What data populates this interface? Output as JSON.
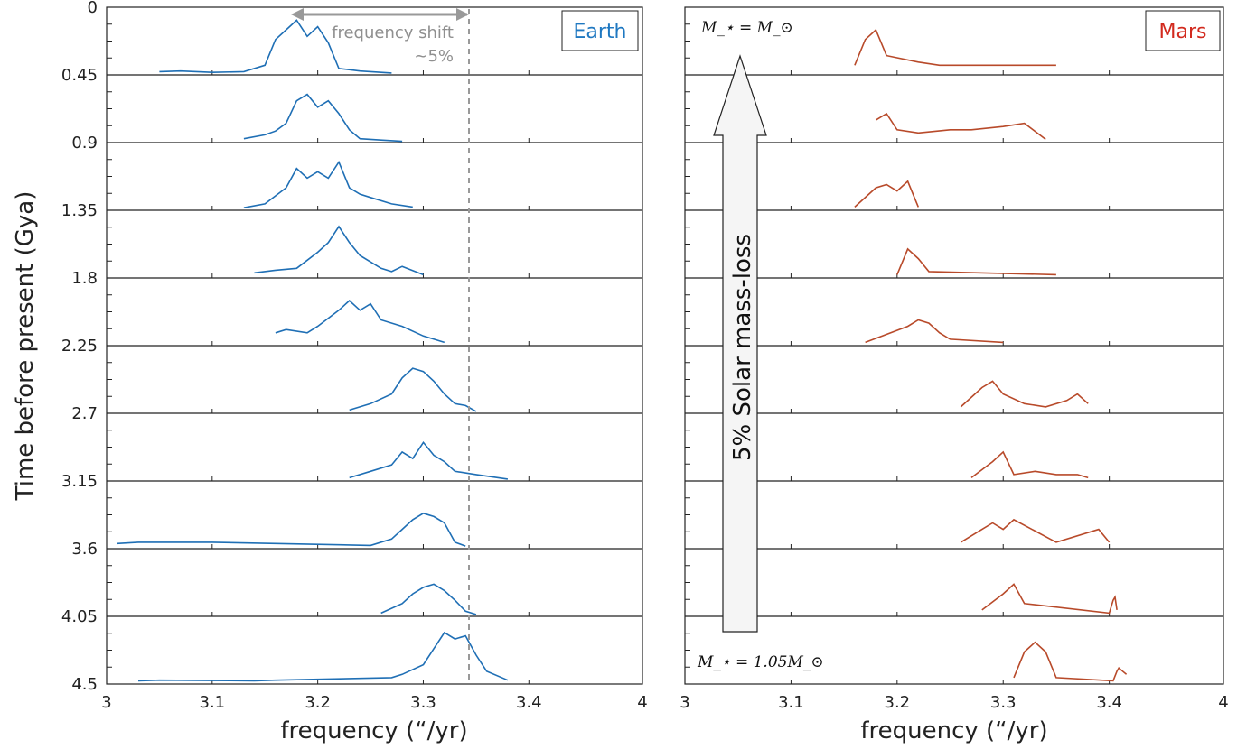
{
  "chart_data": [
    {
      "type": "line",
      "panel": "left",
      "legend": "Earth",
      "xlabel": "frequency (“/yr)",
      "ylabel": "Time before present (Gya)",
      "xlim": [
        3,
        4
      ],
      "xticks": [
        "3",
        "3.1",
        "3.2",
        "3.3",
        "3.4",
        "4"
      ],
      "yticks": [
        "0",
        "0.45",
        "0.9",
        "1.35",
        "1.8",
        "2.25",
        "2.7",
        "3.15",
        "3.6",
        "4.05",
        "4.5"
      ],
      "line_color": "#1f6fb5",
      "annotation": {
        "line1": "frequency shift",
        "line2": "~5%",
        "from_x": 3.175,
        "to_x": 3.34,
        "dashed_x": 3.34
      },
      "rows": [
        {
          "time": "0",
          "x": [
            3.05,
            3.07,
            3.1,
            3.13,
            3.15,
            3.16,
            3.17,
            3.18,
            3.19,
            3.2,
            3.21,
            3.22,
            3.24,
            3.26,
            3.27
          ],
          "y": [
            0.05,
            0.06,
            0.04,
            0.05,
            0.15,
            0.55,
            0.7,
            0.85,
            0.6,
            0.75,
            0.5,
            0.1,
            0.06,
            0.04,
            0.03
          ]
        },
        {
          "time": "0.45",
          "x": [
            3.13,
            3.15,
            3.16,
            3.17,
            3.18,
            3.19,
            3.2,
            3.21,
            3.22,
            3.23,
            3.24,
            3.26,
            3.28
          ],
          "y": [
            0.06,
            0.12,
            0.18,
            0.3,
            0.65,
            0.75,
            0.55,
            0.65,
            0.45,
            0.2,
            0.06,
            0.04,
            0.02
          ]
        },
        {
          "time": "0.9",
          "x": [
            3.13,
            3.15,
            3.17,
            3.18,
            3.19,
            3.2,
            3.21,
            3.22,
            3.23,
            3.24,
            3.25,
            3.27,
            3.29
          ],
          "y": [
            0.04,
            0.1,
            0.35,
            0.65,
            0.5,
            0.6,
            0.5,
            0.75,
            0.35,
            0.25,
            0.2,
            0.1,
            0.05
          ]
        },
        {
          "time": "1.35",
          "x": [
            3.14,
            3.16,
            3.18,
            3.2,
            3.21,
            3.22,
            3.23,
            3.24,
            3.26,
            3.27,
            3.28,
            3.3
          ],
          "y": [
            0.08,
            0.12,
            0.15,
            0.4,
            0.55,
            0.8,
            0.55,
            0.35,
            0.15,
            0.1,
            0.18,
            0.05
          ]
        },
        {
          "time": "1.8",
          "x": [
            3.16,
            3.17,
            3.19,
            3.2,
            3.22,
            3.23,
            3.24,
            3.25,
            3.26,
            3.28,
            3.3,
            3.32
          ],
          "y": [
            0.2,
            0.25,
            0.2,
            0.3,
            0.55,
            0.7,
            0.55,
            0.65,
            0.4,
            0.3,
            0.15,
            0.05
          ]
        },
        {
          "time": "2.25",
          "x": [
            3.23,
            3.25,
            3.27,
            3.28,
            3.29,
            3.3,
            3.31,
            3.32,
            3.33,
            3.34,
            3.35
          ],
          "y": [
            0.05,
            0.15,
            0.3,
            0.55,
            0.7,
            0.65,
            0.5,
            0.3,
            0.15,
            0.12,
            0.03
          ]
        },
        {
          "time": "2.7",
          "x": [
            3.23,
            3.25,
            3.27,
            3.28,
            3.29,
            3.3,
            3.31,
            3.32,
            3.33,
            3.35,
            3.38
          ],
          "y": [
            0.05,
            0.15,
            0.25,
            0.45,
            0.35,
            0.6,
            0.4,
            0.3,
            0.15,
            0.1,
            0.03
          ]
        },
        {
          "time": "3.15",
          "x": [
            3.01,
            3.03,
            3.1,
            3.25,
            3.27,
            3.28,
            3.29,
            3.3,
            3.31,
            3.32,
            3.33,
            3.34
          ],
          "y": [
            0.08,
            0.1,
            0.1,
            0.05,
            0.15,
            0.3,
            0.45,
            0.55,
            0.5,
            0.4,
            0.1,
            0.04
          ]
        },
        {
          "time": "3.6",
          "x": [
            3.26,
            3.28,
            3.29,
            3.3,
            3.31,
            3.32,
            3.33,
            3.34,
            3.35
          ],
          "y": [
            0.05,
            0.2,
            0.35,
            0.45,
            0.5,
            0.4,
            0.25,
            0.08,
            0.03
          ]
        },
        {
          "time": "4.05",
          "x": [
            3.03,
            3.05,
            3.14,
            3.16,
            3.27,
            3.28,
            3.3,
            3.31,
            3.32,
            3.33,
            3.34,
            3.35,
            3.36,
            3.38
          ],
          "y": [
            0.05,
            0.06,
            0.05,
            0.06,
            0.1,
            0.15,
            0.3,
            0.55,
            0.8,
            0.7,
            0.75,
            0.45,
            0.2,
            0.06
          ]
        }
      ]
    },
    {
      "type": "line",
      "panel": "right",
      "legend": "Mars",
      "xlabel": "frequency (“/yr)",
      "xlim": [
        3,
        4
      ],
      "xticks": [
        "3",
        "3.1",
        "3.2",
        "3.3",
        "3.4",
        "4"
      ],
      "line_color": "#b84a2a",
      "top_label": "M_⋆ = M_⊙",
      "bottom_label": "M_⋆ = 1.05M_⊙",
      "arrow_label": "5% Solar mass-loss",
      "rows": [
        {
          "time": "0",
          "x": [
            3.16,
            3.17,
            3.18,
            3.19,
            3.22,
            3.24,
            3.27,
            3.3,
            3.35
          ],
          "y": [
            0.15,
            0.55,
            0.7,
            0.3,
            0.2,
            0.15,
            0.15,
            0.15,
            0.15
          ]
        },
        {
          "time": "0.45",
          "x": [
            3.18,
            3.19,
            3.2,
            3.22,
            3.25,
            3.27,
            3.3,
            3.32,
            3.34
          ],
          "y": [
            0.35,
            0.45,
            0.2,
            0.15,
            0.2,
            0.2,
            0.25,
            0.3,
            0.05
          ]
        },
        {
          "time": "0.9",
          "x": [
            3.16,
            3.18,
            3.19,
            3.2,
            3.21,
            3.22
          ],
          "y": [
            0.05,
            0.35,
            0.4,
            0.3,
            0.45,
            0.05
          ]
        },
        {
          "time": "1.35",
          "x": [
            3.2,
            3.21,
            3.22,
            3.23,
            3.35
          ],
          "y": [
            0.05,
            0.45,
            0.3,
            0.1,
            0.05
          ]
        },
        {
          "time": "1.8",
          "x": [
            3.17,
            3.21,
            3.22,
            3.23,
            3.24,
            3.25,
            3.3
          ],
          "y": [
            0.05,
            0.3,
            0.4,
            0.35,
            0.2,
            0.1,
            0.05
          ]
        },
        {
          "time": "2.25",
          "x": [
            3.26,
            3.28,
            3.29,
            3.3,
            3.32,
            3.34,
            3.36,
            3.37,
            3.38
          ],
          "y": [
            0.1,
            0.4,
            0.5,
            0.3,
            0.15,
            0.1,
            0.2,
            0.3,
            0.15
          ]
        },
        {
          "time": "2.7",
          "x": [
            3.27,
            3.29,
            3.3,
            3.31,
            3.33,
            3.35,
            3.37,
            3.38
          ],
          "y": [
            0.05,
            0.3,
            0.45,
            0.1,
            0.15,
            0.1,
            0.1,
            0.05
          ]
        },
        {
          "time": "3.15",
          "x": [
            3.26,
            3.28,
            3.29,
            3.3,
            3.31,
            3.35,
            3.39,
            3.4
          ],
          "y": [
            0.1,
            0.3,
            0.4,
            0.3,
            0.45,
            0.1,
            0.3,
            0.1
          ]
        },
        {
          "time": "3.6",
          "x": [
            3.28,
            3.3,
            3.31,
            3.32,
            3.4,
            3.42,
            3.43,
            3.44
          ],
          "y": [
            0.1,
            0.35,
            0.5,
            0.2,
            0.05,
            0.25,
            0.3,
            0.1
          ]
        },
        {
          "time": "4.05",
          "x": [
            3.31,
            3.32,
            3.33,
            3.34,
            3.35,
            3.42,
            3.44,
            3.45,
            3.47,
            3.49
          ],
          "y": [
            0.1,
            0.5,
            0.65,
            0.5,
            0.1,
            0.05,
            0.2,
            0.25,
            0.2,
            0.15
          ]
        }
      ]
    }
  ]
}
